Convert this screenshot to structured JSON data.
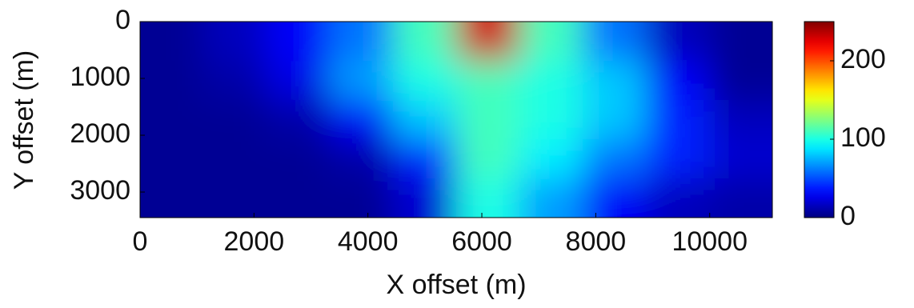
{
  "chart_data": {
    "type": "heatmap",
    "xlabel": "X offset (m)",
    "ylabel": "Y offset (m)",
    "xlim": [
      0,
      11100
    ],
    "xticks": [
      0,
      2000,
      4000,
      6000,
      8000,
      10000
    ],
    "ylim": [
      0,
      3450
    ],
    "yticks": [
      0,
      1000,
      2000,
      3000
    ],
    "y_reversed": true,
    "colormap": "jet",
    "clim": [
      0,
      250
    ],
    "cticks": [
      0,
      100,
      200
    ],
    "z": [
      [
        5,
        15,
        30,
        60,
        110,
        230,
        110,
        60,
        15,
        5
      ],
      [
        5,
        10,
        25,
        70,
        100,
        110,
        100,
        80,
        30,
        5
      ],
      [
        5,
        5,
        10,
        30,
        80,
        110,
        100,
        80,
        40,
        15
      ],
      [
        5,
        5,
        5,
        10,
        40,
        110,
        90,
        60,
        40,
        20
      ],
      [
        5,
        5,
        5,
        5,
        20,
        100,
        70,
        30,
        15,
        10
      ]
    ]
  }
}
